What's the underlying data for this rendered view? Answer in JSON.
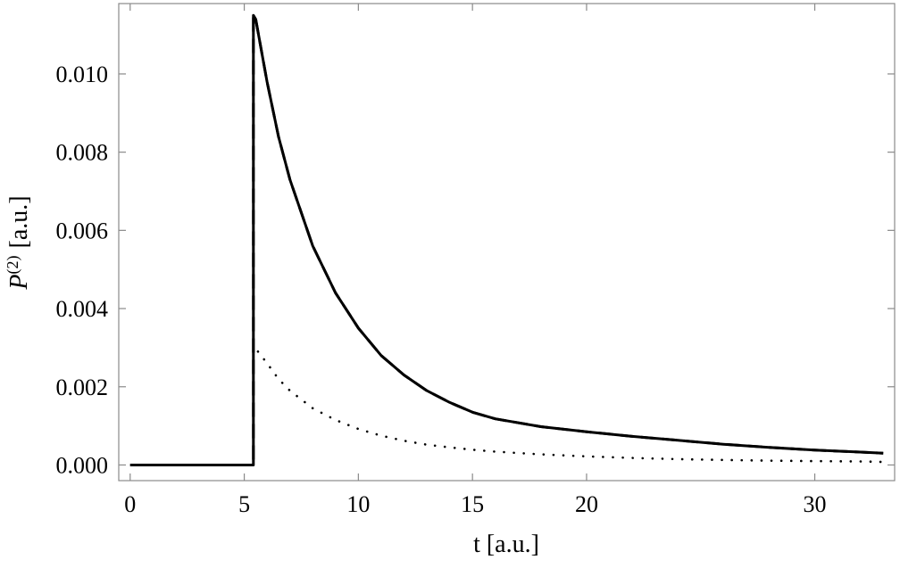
{
  "chart_data": {
    "type": "line",
    "title": "",
    "xlabel": "t [a.u.]",
    "ylabel": "P",
    "ylabel_superscript": "(2)",
    "ylabel_unit": "[a.u.]",
    "xlim": [
      -0.5,
      33.5
    ],
    "ylim": [
      -0.0004,
      0.0118
    ],
    "x_ticks": [
      0,
      5,
      10,
      15,
      20,
      30
    ],
    "y_ticks": [
      0.0,
      0.002,
      0.004,
      0.006,
      0.008,
      0.01
    ],
    "y_tick_labels": [
      "0.000",
      "0.002",
      "0.004",
      "0.006",
      "0.008",
      "0.010"
    ],
    "x_tick_labels": [
      "0",
      "5",
      "10",
      "15",
      "20",
      "30"
    ],
    "grid": false,
    "legend": "none",
    "series": [
      {
        "style": "solid",
        "x": [
          0,
          5.4,
          5.4,
          5.5,
          6,
          6.5,
          7,
          8,
          9,
          10,
          11,
          12,
          13,
          14,
          15,
          16,
          18,
          20,
          22,
          24,
          26,
          28,
          30,
          32,
          33
        ],
        "y": [
          0,
          0,
          0.0115,
          0.0114,
          0.0098,
          0.0084,
          0.0073,
          0.0056,
          0.0044,
          0.0035,
          0.0028,
          0.0023,
          0.0019,
          0.0016,
          0.00135,
          0.00118,
          0.00098,
          0.00085,
          0.00073,
          0.00063,
          0.00053,
          0.00045,
          0.00038,
          0.00033,
          0.0003
        ]
      },
      {
        "style": "dashed",
        "x": [
          0,
          5.4,
          5.4,
          5.5,
          6,
          6.5,
          7,
          8,
          9,
          10,
          11,
          12,
          13,
          14,
          15,
          16,
          18,
          20,
          22,
          24,
          26,
          28,
          30,
          32,
          33
        ],
        "y": [
          0,
          0,
          0.0115,
          0.0114,
          0.0098,
          0.0084,
          0.0073,
          0.0056,
          0.0044,
          0.0035,
          0.0028,
          0.0023,
          0.0019,
          0.0016,
          0.00135,
          0.00118,
          0.00098,
          0.00085,
          0.00073,
          0.00063,
          0.00053,
          0.00045,
          0.00038,
          0.00033,
          0.0003
        ]
      },
      {
        "style": "dotted",
        "x": [
          5.6,
          6,
          6.5,
          7,
          8,
          9,
          10,
          11,
          12,
          13,
          14,
          15,
          16,
          18,
          20,
          22,
          24,
          26,
          28,
          30,
          32,
          33
        ],
        "y": [
          0.0029,
          0.0026,
          0.0022,
          0.0019,
          0.00145,
          0.00115,
          0.00092,
          0.00075,
          0.00062,
          0.00052,
          0.00045,
          0.00039,
          0.00034,
          0.00027,
          0.00022,
          0.00018,
          0.00015,
          0.00013,
          0.00011,
          0.0001,
          9e-05,
          8e-05
        ]
      }
    ]
  }
}
